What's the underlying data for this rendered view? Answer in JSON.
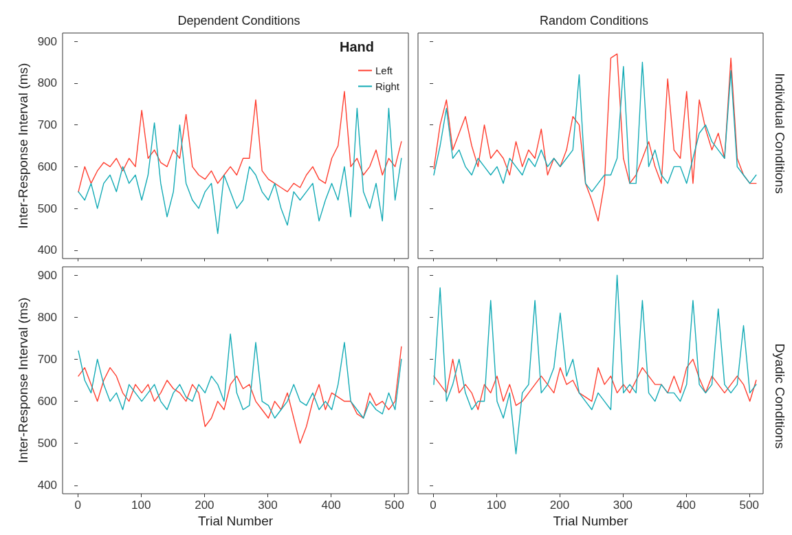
{
  "chart_data": [
    {
      "type": "line",
      "title": "Dependent Conditions",
      "ylabel": "Inter-Response Interval (ms)",
      "legend_title": "Hand",
      "legend": "top right",
      "marker": "none",
      "tick_labels": "y",
      "x": [
        1,
        11,
        21,
        31,
        41,
        51,
        61,
        71,
        81,
        91,
        101,
        111,
        121,
        131,
        141,
        151,
        161,
        171,
        181,
        191,
        201,
        211,
        221,
        231,
        241,
        251,
        261,
        271,
        281,
        291,
        301,
        311,
        321,
        331,
        341,
        351,
        361,
        371,
        381,
        391,
        401,
        411,
        421,
        431,
        441,
        451,
        461,
        471,
        481,
        491,
        501,
        511
      ],
      "xlim": [
        -24,
        522
      ],
      "xticks": [
        0,
        100,
        200,
        300,
        400,
        500
      ],
      "ylim": [
        380,
        920
      ],
      "yticks": [
        400,
        500,
        600,
        700,
        800,
        900
      ],
      "series": [
        {
          "name": "Left",
          "color": "#ff3d2e",
          "values": [
            540,
            600,
            560,
            590,
            610,
            600,
            620,
            590,
            620,
            600,
            735,
            620,
            640,
            610,
            600,
            640,
            620,
            725,
            600,
            580,
            570,
            590,
            560,
            580,
            600,
            580,
            620,
            620,
            760,
            590,
            570,
            560,
            550,
            540,
            560,
            550,
            580,
            600,
            570,
            560,
            620,
            650,
            780,
            600,
            620,
            580,
            600,
            640,
            580,
            620,
            600,
            660
          ]
        },
        {
          "name": "Right",
          "color": "#12aab5",
          "values": [
            540,
            520,
            560,
            500,
            560,
            580,
            540,
            600,
            560,
            580,
            520,
            580,
            705,
            560,
            480,
            540,
            700,
            560,
            520,
            500,
            540,
            560,
            440,
            580,
            540,
            500,
            520,
            600,
            580,
            540,
            520,
            560,
            500,
            460,
            540,
            520,
            540,
            560,
            470,
            520,
            560,
            520,
            600,
            480,
            740,
            540,
            500,
            560,
            470,
            740,
            520,
            620
          ]
        }
      ]
    },
    {
      "type": "line",
      "title": "Random Conditions",
      "y2label": "Individual Conditions",
      "marker": "none",
      "tick_labels": false,
      "x": [
        1,
        11,
        21,
        31,
        41,
        51,
        61,
        71,
        81,
        91,
        101,
        111,
        121,
        131,
        141,
        151,
        161,
        171,
        181,
        191,
        201,
        211,
        221,
        231,
        241,
        251,
        261,
        271,
        281,
        291,
        301,
        311,
        321,
        331,
        341,
        351,
        361,
        371,
        381,
        391,
        401,
        411,
        421,
        431,
        441,
        451,
        461,
        471,
        481,
        491,
        501,
        511
      ],
      "xlim": [
        -24,
        522
      ],
      "xticks": [
        0,
        100,
        200,
        300,
        400,
        500
      ],
      "ylim": [
        380,
        920
      ],
      "yticks": [
        400,
        500,
        600,
        700,
        800,
        900
      ],
      "series": [
        {
          "color": "#ff3d2e",
          "values": [
            595,
            700,
            760,
            640,
            680,
            720,
            650,
            600,
            700,
            620,
            640,
            620,
            580,
            660,
            600,
            640,
            620,
            690,
            580,
            620,
            600,
            640,
            720,
            700,
            560,
            520,
            470,
            560,
            860,
            870,
            620,
            560,
            580,
            620,
            660,
            600,
            560,
            810,
            640,
            620,
            780,
            560,
            760,
            690,
            640,
            680,
            620,
            860,
            620,
            580,
            560,
            560
          ]
        },
        {
          "color": "#12aab5",
          "values": [
            580,
            650,
            740,
            620,
            640,
            600,
            580,
            620,
            600,
            580,
            600,
            560,
            620,
            600,
            580,
            620,
            600,
            640,
            600,
            620,
            600,
            620,
            640,
            820,
            560,
            540,
            560,
            580,
            580,
            620,
            840,
            560,
            560,
            850,
            600,
            640,
            580,
            560,
            600,
            600,
            560,
            620,
            680,
            700,
            660,
            640,
            620,
            830,
            600,
            580,
            560,
            580
          ]
        }
      ]
    },
    {
      "type": "line",
      "xlabel": "Trial Number",
      "ylabel": "Inter-Response Interval (ms)",
      "marker": "none",
      "x": [
        1,
        11,
        21,
        31,
        41,
        51,
        61,
        71,
        81,
        91,
        101,
        111,
        121,
        131,
        141,
        151,
        161,
        171,
        181,
        191,
        201,
        211,
        221,
        231,
        241,
        251,
        261,
        271,
        281,
        291,
        301,
        311,
        321,
        331,
        341,
        351,
        361,
        371,
        381,
        391,
        401,
        411,
        421,
        431,
        441,
        451,
        461,
        471,
        481,
        491,
        501,
        511
      ],
      "xlim": [
        -24,
        522
      ],
      "xticks": [
        0,
        100,
        200,
        300,
        400,
        500
      ],
      "ylim": [
        380,
        920
      ],
      "yticks": [
        400,
        500,
        600,
        700,
        800,
        900
      ],
      "series": [
        {
          "color": "#ff3d2e",
          "values": [
            660,
            680,
            640,
            600,
            650,
            680,
            660,
            620,
            600,
            640,
            620,
            640,
            600,
            620,
            650,
            630,
            620,
            600,
            640,
            620,
            540,
            560,
            600,
            580,
            640,
            660,
            630,
            640,
            600,
            580,
            560,
            600,
            580,
            620,
            560,
            500,
            540,
            600,
            640,
            580,
            620,
            610,
            600,
            600,
            570,
            560,
            620,
            590,
            600,
            580,
            600,
            730
          ]
        },
        {
          "color": "#12aab5",
          "values": [
            720,
            650,
            620,
            700,
            640,
            600,
            620,
            580,
            640,
            620,
            600,
            620,
            640,
            600,
            580,
            620,
            640,
            610,
            600,
            640,
            620,
            660,
            640,
            600,
            760,
            620,
            580,
            590,
            740,
            600,
            590,
            560,
            580,
            600,
            640,
            600,
            590,
            620,
            580,
            600,
            580,
            640,
            740,
            600,
            580,
            560,
            600,
            580,
            570,
            620,
            580,
            700
          ]
        }
      ]
    },
    {
      "type": "line",
      "xlabel": "Trial Number",
      "y2label": "Dyadic Conditions",
      "marker": "none",
      "tick_labels": "x",
      "x": [
        1,
        11,
        21,
        31,
        41,
        51,
        61,
        71,
        81,
        91,
        101,
        111,
        121,
        131,
        141,
        151,
        161,
        171,
        181,
        191,
        201,
        211,
        221,
        231,
        241,
        251,
        261,
        271,
        281,
        291,
        301,
        311,
        321,
        331,
        341,
        351,
        361,
        371,
        381,
        391,
        401,
        411,
        421,
        431,
        441,
        451,
        461,
        471,
        481,
        491,
        501,
        511
      ],
      "xlim": [
        -24,
        522
      ],
      "xticks": [
        0,
        100,
        200,
        300,
        400,
        500
      ],
      "ylim": [
        380,
        920
      ],
      "yticks": [
        400,
        500,
        600,
        700,
        800,
        900
      ],
      "series": [
        {
          "color": "#ff3d2e",
          "values": [
            660,
            640,
            620,
            700,
            620,
            640,
            620,
            580,
            640,
            620,
            660,
            600,
            640,
            590,
            600,
            620,
            640,
            660,
            640,
            620,
            680,
            640,
            650,
            620,
            610,
            600,
            680,
            640,
            660,
            620,
            640,
            620,
            650,
            680,
            660,
            640,
            640,
            620,
            660,
            620,
            680,
            700,
            655,
            620,
            660,
            640,
            620,
            640,
            660,
            640,
            600,
            650
          ]
        },
        {
          "color": "#12aab5",
          "values": [
            640,
            870,
            600,
            640,
            700,
            620,
            580,
            600,
            600,
            840,
            600,
            560,
            620,
            475,
            620,
            640,
            840,
            620,
            640,
            680,
            810,
            660,
            700,
            620,
            600,
            580,
            620,
            600,
            580,
            900,
            620,
            640,
            620,
            840,
            620,
            600,
            640,
            620,
            620,
            600,
            640,
            840,
            640,
            620,
            640,
            820,
            640,
            620,
            640,
            780,
            620,
            640
          ]
        }
      ]
    }
  ]
}
